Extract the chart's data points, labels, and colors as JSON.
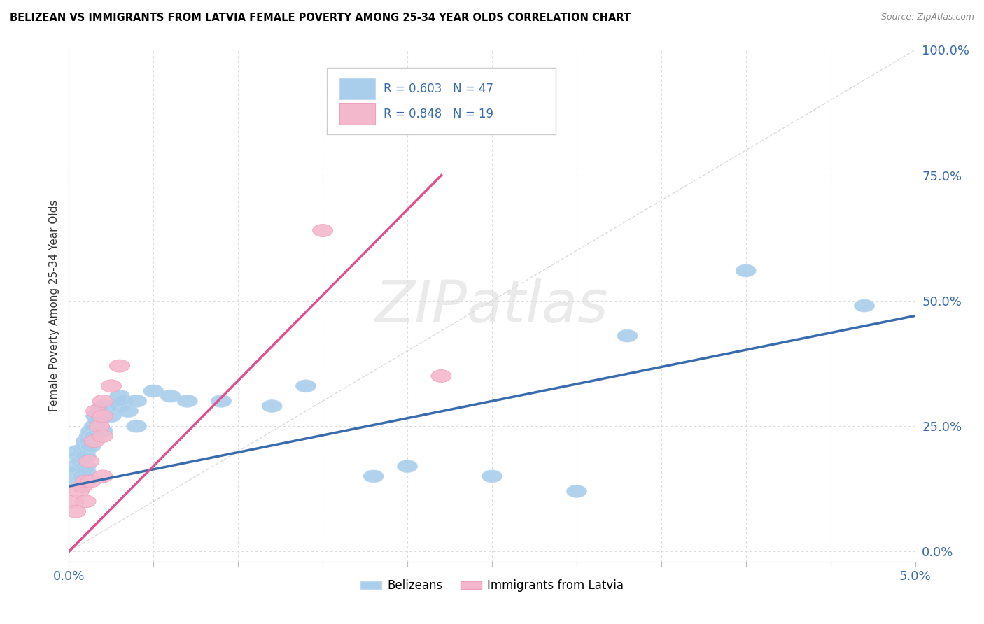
{
  "title": "BELIZEAN VS IMMIGRANTS FROM LATVIA FEMALE POVERTY AMONG 25-34 YEAR OLDS CORRELATION CHART",
  "source": "Source: ZipAtlas.com",
  "ylabel": "Female Poverty Among 25-34 Year Olds",
  "xlim": [
    0.0,
    0.05
  ],
  "ylim": [
    -0.02,
    1.0
  ],
  "yticks_right": [
    0.0,
    0.25,
    0.5,
    0.75,
    1.0
  ],
  "yticklabels_right": [
    "0.0%",
    "25.0%",
    "50.0%",
    "75.0%",
    "100.0%"
  ],
  "belizeans_color": "#A8CEEC",
  "latvia_color": "#F4B8CC",
  "blue_line_color": "#3A6BAC",
  "pink_line_color": "#E05090",
  "ref_line_color": "#CCCCCC",
  "background_color": "#FFFFFF",
  "grid_color": "#DDDDDD",
  "watermark": "ZIPatlas",
  "belizeans_x": [
    0.0003,
    0.0003,
    0.0004,
    0.0005,
    0.0006,
    0.0007,
    0.0008,
    0.0008,
    0.001,
    0.001,
    0.001,
    0.001,
    0.001,
    0.001,
    0.0012,
    0.0012,
    0.0013,
    0.0013,
    0.0015,
    0.0015,
    0.0016,
    0.0017,
    0.0018,
    0.002,
    0.002,
    0.002,
    0.0022,
    0.0025,
    0.003,
    0.003,
    0.0032,
    0.0035,
    0.004,
    0.004,
    0.005,
    0.006,
    0.007,
    0.009,
    0.012,
    0.014,
    0.018,
    0.02,
    0.025,
    0.03,
    0.033,
    0.04,
    0.047
  ],
  "belizeans_y": [
    0.14,
    0.17,
    0.16,
    0.2,
    0.19,
    0.18,
    0.2,
    0.15,
    0.2,
    0.21,
    0.19,
    0.17,
    0.22,
    0.16,
    0.23,
    0.22,
    0.24,
    0.21,
    0.25,
    0.23,
    0.27,
    0.26,
    0.28,
    0.29,
    0.27,
    0.24,
    0.29,
    0.27,
    0.29,
    0.31,
    0.3,
    0.28,
    0.3,
    0.25,
    0.32,
    0.31,
    0.3,
    0.3,
    0.29,
    0.33,
    0.15,
    0.17,
    0.15,
    0.12,
    0.43,
    0.56,
    0.49
  ],
  "latvia_x": [
    0.0003,
    0.0004,
    0.0006,
    0.0008,
    0.001,
    0.001,
    0.0012,
    0.0013,
    0.0015,
    0.0016,
    0.0018,
    0.002,
    0.002,
    0.002,
    0.002,
    0.0025,
    0.003,
    0.015,
    0.022
  ],
  "latvia_y": [
    0.1,
    0.08,
    0.12,
    0.13,
    0.14,
    0.1,
    0.18,
    0.14,
    0.22,
    0.28,
    0.25,
    0.3,
    0.27,
    0.23,
    0.15,
    0.33,
    0.37,
    0.64,
    0.35
  ],
  "blue_line_x0": 0.0,
  "blue_line_y0": 0.13,
  "blue_line_x1": 0.05,
  "blue_line_y1": 0.47,
  "pink_line_x0": 0.0,
  "pink_line_y0": 0.0,
  "pink_line_x1": 0.022,
  "pink_line_y1": 0.75
}
